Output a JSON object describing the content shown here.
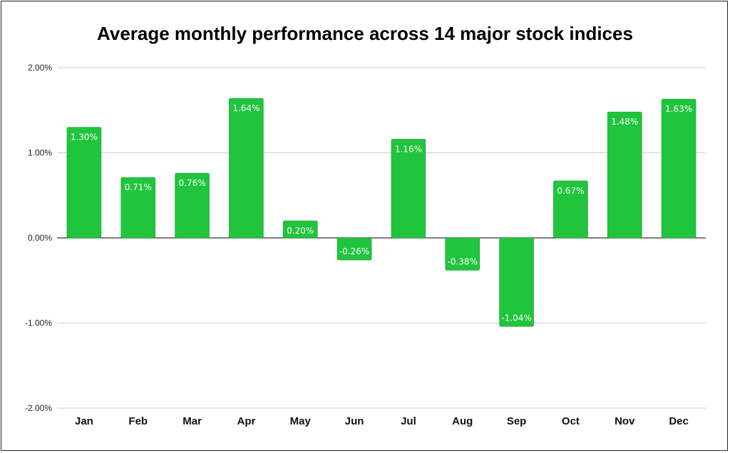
{
  "chart_data": {
    "type": "bar",
    "title": "Average monthly performance across 14 major stock indices",
    "categories": [
      "Jan",
      "Feb",
      "Mar",
      "Apr",
      "May",
      "Jun",
      "Jul",
      "Aug",
      "Sep",
      "Oct",
      "Nov",
      "Dec"
    ],
    "values": [
      1.3,
      0.71,
      0.76,
      1.64,
      0.2,
      -0.26,
      1.16,
      -0.38,
      -1.04,
      0.67,
      1.48,
      1.63
    ],
    "data_labels": [
      "1.30%",
      "0.71%",
      "0.76%",
      "1.64%",
      "0.20%",
      "-0.26%",
      "1.16%",
      "-0.38%",
      "-1.04%",
      "0.67%",
      "1.48%",
      "1.63%"
    ],
    "yticks": [
      2,
      1,
      0,
      -1,
      -2
    ],
    "ytick_labels": [
      "2.00%",
      "1.00%",
      "0.00%",
      "-1.00%",
      "-2.00%"
    ],
    "ylim": [
      -2,
      2
    ],
    "xlabel": "",
    "ylabel": "",
    "grid": true,
    "legend": "none",
    "bar_color": "#20c43d",
    "grid_color": "#cccccc",
    "zero_line_color": "#333333"
  }
}
